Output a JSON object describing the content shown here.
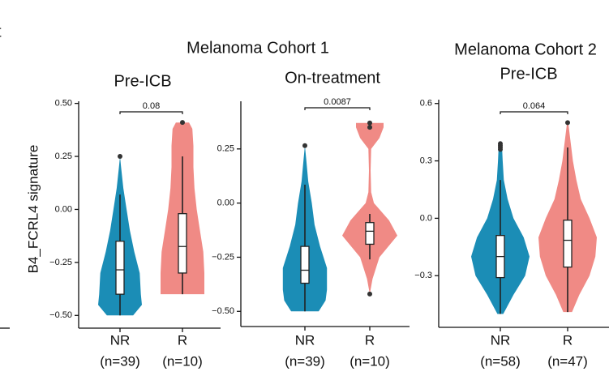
{
  "cropped_text": "t",
  "chart_data": [
    {
      "type": "violin",
      "group_title": "Melanoma Cohort 1",
      "title": "Pre-ICB",
      "ylabel": "B4_FCRL4 signature",
      "ylim": [
        -0.56,
        0.51
      ],
      "yticks": [
        {
          "value": 0.5,
          "label": "0.50"
        },
        {
          "value": 0.25,
          "label": "0.25"
        },
        {
          "value": 0,
          "label": "0.00"
        },
        {
          "value": -0.25,
          "label": "−0.25"
        },
        {
          "value": -0.5,
          "label": "−0.50"
        }
      ],
      "categories": [
        "NR",
        "R"
      ],
      "category_sublabels": [
        "(n=39)",
        "(n=10)"
      ],
      "p_value": "0.08",
      "groups": [
        {
          "color": "#1b8db6",
          "box": {
            "min": -0.5,
            "q1": -0.4,
            "median": -0.285,
            "q3": -0.15,
            "max": 0.07
          },
          "outliers": [
            0.25
          ],
          "density": {
            "y": [
              -0.5,
              -0.45,
              -0.4,
              -0.3,
              -0.2,
              -0.1,
              0,
              0.1,
              0.2,
              0.25
            ],
            "width": [
              0.6,
              1,
              0.95,
              0.9,
              0.65,
              0.45,
              0.3,
              0.15,
              0.05,
              0
            ]
          }
        },
        {
          "color": "#f08a85",
          "box": {
            "min": -0.4,
            "q1": -0.3,
            "median": -0.175,
            "q3": -0.02,
            "max": 0.25
          },
          "outliers": [
            0.41
          ],
          "density": {
            "y": [
              -0.4,
              -0.3,
              -0.2,
              -0.1,
              0,
              0.1,
              0.2,
              0.3,
              0.38,
              0.41
            ],
            "width": [
              1,
              1,
              0.95,
              0.8,
              0.65,
              0.55,
              0.5,
              0.5,
              0.45,
              0.3
            ]
          }
        }
      ]
    },
    {
      "type": "violin",
      "title": "On-treatment",
      "ylim": [
        -0.57,
        0.47
      ],
      "yticks": [
        {
          "value": 0.25,
          "label": "0.25"
        },
        {
          "value": 0,
          "label": "0.00"
        },
        {
          "value": -0.25,
          "label": "−0.25"
        },
        {
          "value": -0.5,
          "label": "−0.50"
        }
      ],
      "categories": [
        "NR",
        "R"
      ],
      "category_sublabels": [
        "(n=39)",
        "(n=10)"
      ],
      "p_value": "0.0087",
      "groups": [
        {
          "color": "#1b8db6",
          "box": {
            "min": -0.5,
            "q1": -0.37,
            "median": -0.31,
            "q3": -0.2,
            "max": 0.085
          },
          "outliers": [
            0.265
          ],
          "density": {
            "y": [
              -0.5,
              -0.45,
              -0.4,
              -0.3,
              -0.2,
              -0.1,
              0,
              0.1,
              0.2,
              0.265
            ],
            "width": [
              0.5,
              0.75,
              0.8,
              0.8,
              0.55,
              0.35,
              0.25,
              0.12,
              0.05,
              0
            ]
          }
        },
        {
          "color": "#f08a85",
          "box": {
            "min": -0.26,
            "q1": -0.19,
            "median": -0.13,
            "q3": -0.09,
            "max": -0.05
          },
          "outliers": [
            0.37,
            0.35,
            -0.42
          ],
          "density": {
            "y": [
              -0.42,
              -0.35,
              -0.25,
              -0.15,
              -0.08,
              0,
              0.05,
              0.15,
              0.25,
              0.3,
              0.35,
              0.37
            ],
            "width": [
              0,
              0.1,
              0.35,
              1,
              0.7,
              0.15,
              0.05,
              0.03,
              0.05,
              0.35,
              0.5,
              0.5
            ]
          }
        }
      ]
    },
    {
      "type": "violin",
      "group_title": "Melanoma Cohort 2",
      "title": "Pre-ICB",
      "ylim": [
        -0.57,
        0.62
      ],
      "yticks": [
        {
          "value": 0.6,
          "label": "0.6"
        },
        {
          "value": 0.3,
          "label": "0.3"
        },
        {
          "value": 0,
          "label": "0.0"
        },
        {
          "value": -0.3,
          "label": "−0.3"
        }
      ],
      "categories": [
        "NR",
        "R"
      ],
      "category_sublabels": [
        "(n=58)",
        "(n=47)"
      ],
      "p_value": "0.064",
      "groups": [
        {
          "color": "#1b8db6",
          "box": {
            "min": -0.5,
            "q1": -0.31,
            "median": -0.2,
            "q3": -0.09,
            "max": 0.2
          },
          "outliers": [
            0.39,
            0.38,
            0.37,
            0.36
          ],
          "density": {
            "y": [
              -0.5,
              -0.4,
              -0.3,
              -0.2,
              -0.1,
              0,
              0.1,
              0.2,
              0.3,
              0.4
            ],
            "width": [
              0.1,
              0.45,
              0.85,
              1,
              0.8,
              0.45,
              0.25,
              0.12,
              0.08,
              0.05
            ]
          }
        },
        {
          "color": "#f08a85",
          "box": {
            "min": -0.49,
            "q1": -0.255,
            "median": -0.115,
            "q3": -0.01,
            "max": 0.37
          },
          "outliers": [
            0.5
          ],
          "density": {
            "y": [
              -0.49,
              -0.4,
              -0.3,
              -0.2,
              -0.1,
              0,
              0.1,
              0.2,
              0.3,
              0.4,
              0.5
            ],
            "width": [
              0.15,
              0.4,
              0.75,
              0.95,
              1,
              0.75,
              0.45,
              0.3,
              0.18,
              0.1,
              0.02
            ]
          }
        }
      ]
    }
  ]
}
